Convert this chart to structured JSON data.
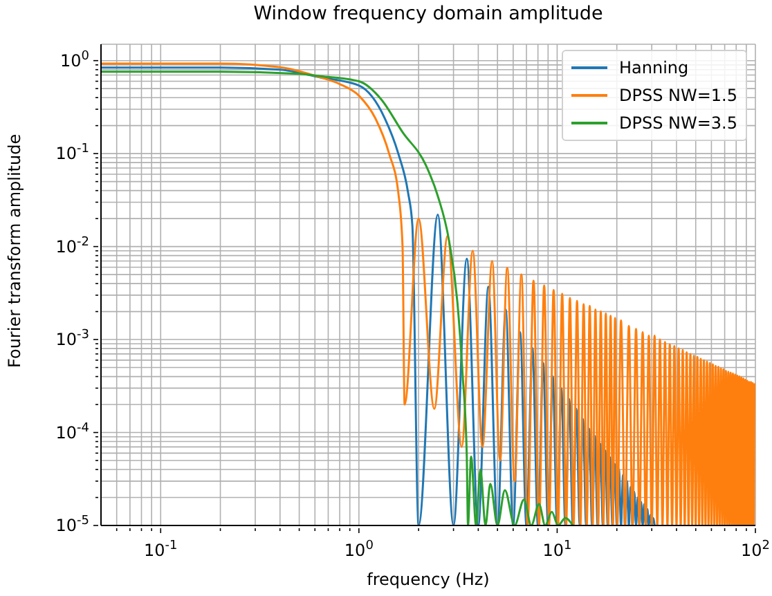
{
  "chart_data": {
    "type": "line",
    "title": "Window frequency domain amplitude",
    "xlabel": "frequency (Hz)",
    "ylabel": "Fourier transform amplitude",
    "log": "xy",
    "grid": true,
    "legend": "top right",
    "xlim": [
      0.05,
      100
    ],
    "ylim": [
      1e-05,
      1.5
    ],
    "xticks": [
      {
        "value": 0.06,
        "label": null
      },
      {
        "value": 0.07,
        "label": null
      },
      {
        "value": 0.08,
        "label": null
      },
      {
        "value": 0.09,
        "label": null
      },
      {
        "value": 0.1,
        "label": "10$^{-1}$"
      },
      {
        "value": 0.2,
        "label": null
      },
      {
        "value": 0.3,
        "label": null
      },
      {
        "value": 0.4,
        "label": null
      },
      {
        "value": 0.5,
        "label": null
      },
      {
        "value": 0.6,
        "label": null
      },
      {
        "value": 0.7,
        "label": null
      },
      {
        "value": 0.8,
        "label": null
      },
      {
        "value": 0.9,
        "label": null
      },
      {
        "value": 1,
        "label": "10$^{0}$"
      },
      {
        "value": 2,
        "label": null
      },
      {
        "value": 3,
        "label": null
      },
      {
        "value": 4,
        "label": null
      },
      {
        "value": 5,
        "label": null
      },
      {
        "value": 6,
        "label": null
      },
      {
        "value": 7,
        "label": null
      },
      {
        "value": 8,
        "label": null
      },
      {
        "value": 9,
        "label": null
      },
      {
        "value": 10,
        "label": "10$^{1}$"
      },
      {
        "value": 20,
        "label": null
      },
      {
        "value": 30,
        "label": null
      },
      {
        "value": 40,
        "label": null
      },
      {
        "value": 50,
        "label": null
      },
      {
        "value": 60,
        "label": null
      },
      {
        "value": 70,
        "label": null
      },
      {
        "value": 80,
        "label": null
      },
      {
        "value": 90,
        "label": null
      },
      {
        "value": 100,
        "label": "10$^{2}$"
      }
    ],
    "yticks": [
      {
        "value": 1e-05,
        "label": "10$^{-5}$"
      },
      {
        "value": 2e-05,
        "label": null
      },
      {
        "value": 3e-05,
        "label": null
      },
      {
        "value": 4e-05,
        "label": null
      },
      {
        "value": 5e-05,
        "label": null
      },
      {
        "value": 6e-05,
        "label": null
      },
      {
        "value": 7e-05,
        "label": null
      },
      {
        "value": 8e-05,
        "label": null
      },
      {
        "value": 9e-05,
        "label": null
      },
      {
        "value": 0.0001,
        "label": "10$^{-4}$"
      },
      {
        "value": 0.0002,
        "label": null
      },
      {
        "value": 0.0003,
        "label": null
      },
      {
        "value": 0.0004,
        "label": null
      },
      {
        "value": 0.0005,
        "label": null
      },
      {
        "value": 0.0006,
        "label": null
      },
      {
        "value": 0.0007,
        "label": null
      },
      {
        "value": 0.0008,
        "label": null
      },
      {
        "value": 0.0009,
        "label": null
      },
      {
        "value": 0.001,
        "label": "10$^{-3}$"
      },
      {
        "value": 0.002,
        "label": null
      },
      {
        "value": 0.003,
        "label": null
      },
      {
        "value": 0.004,
        "label": null
      },
      {
        "value": 0.005,
        "label": null
      },
      {
        "value": 0.006,
        "label": null
      },
      {
        "value": 0.007,
        "label": null
      },
      {
        "value": 0.008,
        "label": null
      },
      {
        "value": 0.009,
        "label": null
      },
      {
        "value": 0.01,
        "label": "10$^{-2}$"
      },
      {
        "value": 0.02,
        "label": null
      },
      {
        "value": 0.03,
        "label": null
      },
      {
        "value": 0.04,
        "label": null
      },
      {
        "value": 0.05,
        "label": null
      },
      {
        "value": 0.06,
        "label": null
      },
      {
        "value": 0.07,
        "label": null
      },
      {
        "value": 0.08,
        "label": null
      },
      {
        "value": 0.09,
        "label": null
      },
      {
        "value": 0.1,
        "label": "10$^{-1}$"
      },
      {
        "value": 0.2,
        "label": null
      },
      {
        "value": 0.3,
        "label": null
      },
      {
        "value": 0.4,
        "label": null
      },
      {
        "value": 0.5,
        "label": null
      },
      {
        "value": 0.6,
        "label": null
      },
      {
        "value": 0.7,
        "label": null
      },
      {
        "value": 0.8,
        "label": null
      },
      {
        "value": 0.9,
        "label": null
      },
      {
        "value": 1,
        "label": "10$^{0}$"
      }
    ],
    "series": [
      {
        "name": "Hanning",
        "color": "#1f77b4",
        "x": [
          0.05,
          0.2,
          0.4,
          0.64,
          1,
          1.35,
          1.58,
          1.77,
          1.86,
          2,
          2.5,
          3,
          3.5,
          4,
          4.5,
          5,
          5.5,
          6,
          6.5,
          7,
          7.5,
          8,
          8.5,
          9,
          9.5,
          10,
          10.5,
          11,
          11.5,
          12,
          12.5,
          13,
          13.5,
          14,
          14.5,
          15,
          15.5,
          16,
          16.5,
          17,
          17.5,
          18,
          18.5,
          19,
          19.5,
          20,
          20.5,
          21,
          21.5,
          22,
          22.5,
          23,
          23.5,
          24,
          24.5,
          25,
          25.5,
          26,
          26.5,
          27,
          27.5,
          28,
          28.5,
          29,
          29.5,
          30,
          30.5,
          31
        ],
        "values": [
          0.84,
          0.84,
          0.8,
          0.66,
          0.54,
          0.24,
          0.1,
          0.038,
          0.017,
          1e-05,
          0.022,
          1e-05,
          0.0074,
          1e-05,
          0.0037,
          1e-05,
          0.0021,
          1e-05,
          0.0012,
          1e-05,
          0.00081,
          1e-05,
          0.00056,
          1e-05,
          0.0004,
          1e-05,
          0.0003,
          1e-05,
          0.00023,
          1e-05,
          0.00018,
          1e-05,
          0.00014,
          1e-05,
          0.00011,
          1e-05,
          9.2e-05,
          1e-05,
          7.6e-05,
          1e-05,
          6.4e-05,
          1e-05,
          5.4e-05,
          1e-05,
          4.6e-05,
          1e-05,
          4e-05,
          1e-05,
          3.5e-05,
          1e-05,
          3e-05,
          1e-05,
          2.6e-05,
          1e-05,
          2.3e-05,
          1e-05,
          2e-05,
          1e-05,
          1.8e-05,
          1e-05,
          1.7e-05,
          1e-05,
          1.5e-05,
          1e-05,
          1.3e-05,
          1e-05,
          1.2e-05,
          1e-05
        ]
      },
      {
        "name": "DPSS NW=1.5",
        "color": "#ff7f0e",
        "x": [
          0.05,
          0.2,
          0.4,
          0.64,
          0.8,
          1,
          1.21,
          1.42,
          1.58,
          1.66,
          1.7,
          2,
          2.4,
          2.8,
          3.3,
          3.75,
          4.2,
          4.7,
          5.15,
          5.6,
          6.1,
          6.6,
          7.1,
          7.6,
          8.1,
          8.6,
          9.1,
          9.6,
          10.1,
          10.6,
          11.1,
          11.6,
          12.1,
          12.6,
          13.1,
          13.6,
          14.1,
          14.6,
          15.1,
          15.6,
          16.1,
          16.6,
          17.1,
          17.6,
          18.1,
          18.6,
          19.1,
          19.6,
          20.1,
          21,
          22,
          23,
          24,
          25,
          26,
          27,
          28,
          29,
          30,
          31,
          32,
          33,
          34,
          35,
          36,
          37,
          38,
          39,
          40,
          41,
          42,
          43,
          44,
          45,
          46,
          47,
          48,
          49,
          50,
          51,
          52,
          53,
          54,
          55,
          56,
          57,
          58,
          59,
          60,
          61,
          62,
          63,
          64,
          65,
          66,
          67,
          68,
          69,
          70,
          71,
          72,
          73,
          74,
          75,
          76,
          77,
          78,
          79,
          80,
          81,
          82,
          83,
          84,
          85,
          86,
          87,
          88,
          89,
          90,
          91,
          92,
          93,
          94,
          95,
          96,
          97,
          98,
          99,
          100
        ],
        "values": [
          0.93,
          0.93,
          0.85,
          0.66,
          0.56,
          0.42,
          0.24,
          0.1,
          0.038,
          0.01,
          0.0002,
          0.02,
          0.00018,
          0.013,
          7e-05,
          0.009,
          7e-05,
          0.007,
          5e-05,
          0.0059,
          3e-05,
          0.005,
          1e-05,
          0.0043,
          1e-05,
          0.0038,
          1e-05,
          0.0034,
          1e-05,
          0.0031,
          1e-05,
          0.0028,
          1e-05,
          0.0026,
          1e-05,
          0.0024,
          1e-05,
          0.0023,
          1e-05,
          0.0021,
          1e-05,
          0.002,
          1e-05,
          0.0019,
          1e-05,
          0.0018,
          1e-05,
          0.0017,
          1e-05,
          0.0016,
          1e-05,
          0.0014,
          1e-05,
          0.0013,
          1e-05,
          0.0012,
          1e-05,
          0.0011,
          1e-05,
          0.0011,
          1e-05,
          0.001,
          1e-05,
          0.00094,
          1e-05,
          0.00089,
          1e-05,
          0.00085,
          1e-05,
          0.0008,
          1e-05,
          0.00077,
          1e-05,
          0.00073,
          1e-05,
          0.0007,
          1e-05,
          0.00067,
          1e-05,
          0.00065,
          1e-05,
          0.00062,
          1e-05,
          0.0006,
          1e-05,
          0.00058,
          1e-05,
          0.00056,
          1e-05,
          0.00054,
          1e-05,
          0.00052,
          1e-05,
          0.00051,
          1e-05,
          0.00049,
          1e-05,
          0.00048,
          1e-05,
          0.00046,
          1e-05,
          0.00045,
          1e-05,
          0.00044,
          1e-05,
          0.00043,
          1e-05,
          0.00042,
          1e-05,
          0.00041,
          1e-05,
          0.0004,
          1e-05,
          0.00039,
          1e-05,
          0.00038,
          1e-05,
          0.00037,
          1e-05,
          0.00036,
          1e-05,
          0.00035,
          1e-05,
          0.00035,
          1e-05,
          0.00034,
          1e-05,
          0.00033,
          0.00033
        ]
      },
      {
        "name": "DPSS NW=3.5",
        "color": "#2ca02c",
        "x": [
          0.05,
          0.2,
          0.5,
          0.64,
          1,
          1.3,
          1.66,
          2.17,
          2.5,
          2.85,
          3.14,
          3.33,
          3.5,
          3.55,
          3.68,
          3.9,
          4.1,
          4.35,
          4.6,
          5,
          5.45,
          6.1,
          6.8,
          7.4,
          8.1,
          8.7,
          9.4,
          10.1,
          11,
          12
        ],
        "values": [
          0.76,
          0.76,
          0.72,
          0.68,
          0.6,
          0.38,
          0.17,
          0.076,
          0.035,
          0.0115,
          0.0025,
          0.00044,
          5.6e-05,
          1e-05,
          5.5e-05,
          1e-05,
          4e-05,
          1e-05,
          2.8e-05,
          1e-05,
          2.4e-05,
          1e-05,
          1.9e-05,
          1e-05,
          1.7e-05,
          1e-05,
          1.4e-05,
          1e-05,
          1.2e-05,
          1e-05
        ]
      }
    ]
  }
}
